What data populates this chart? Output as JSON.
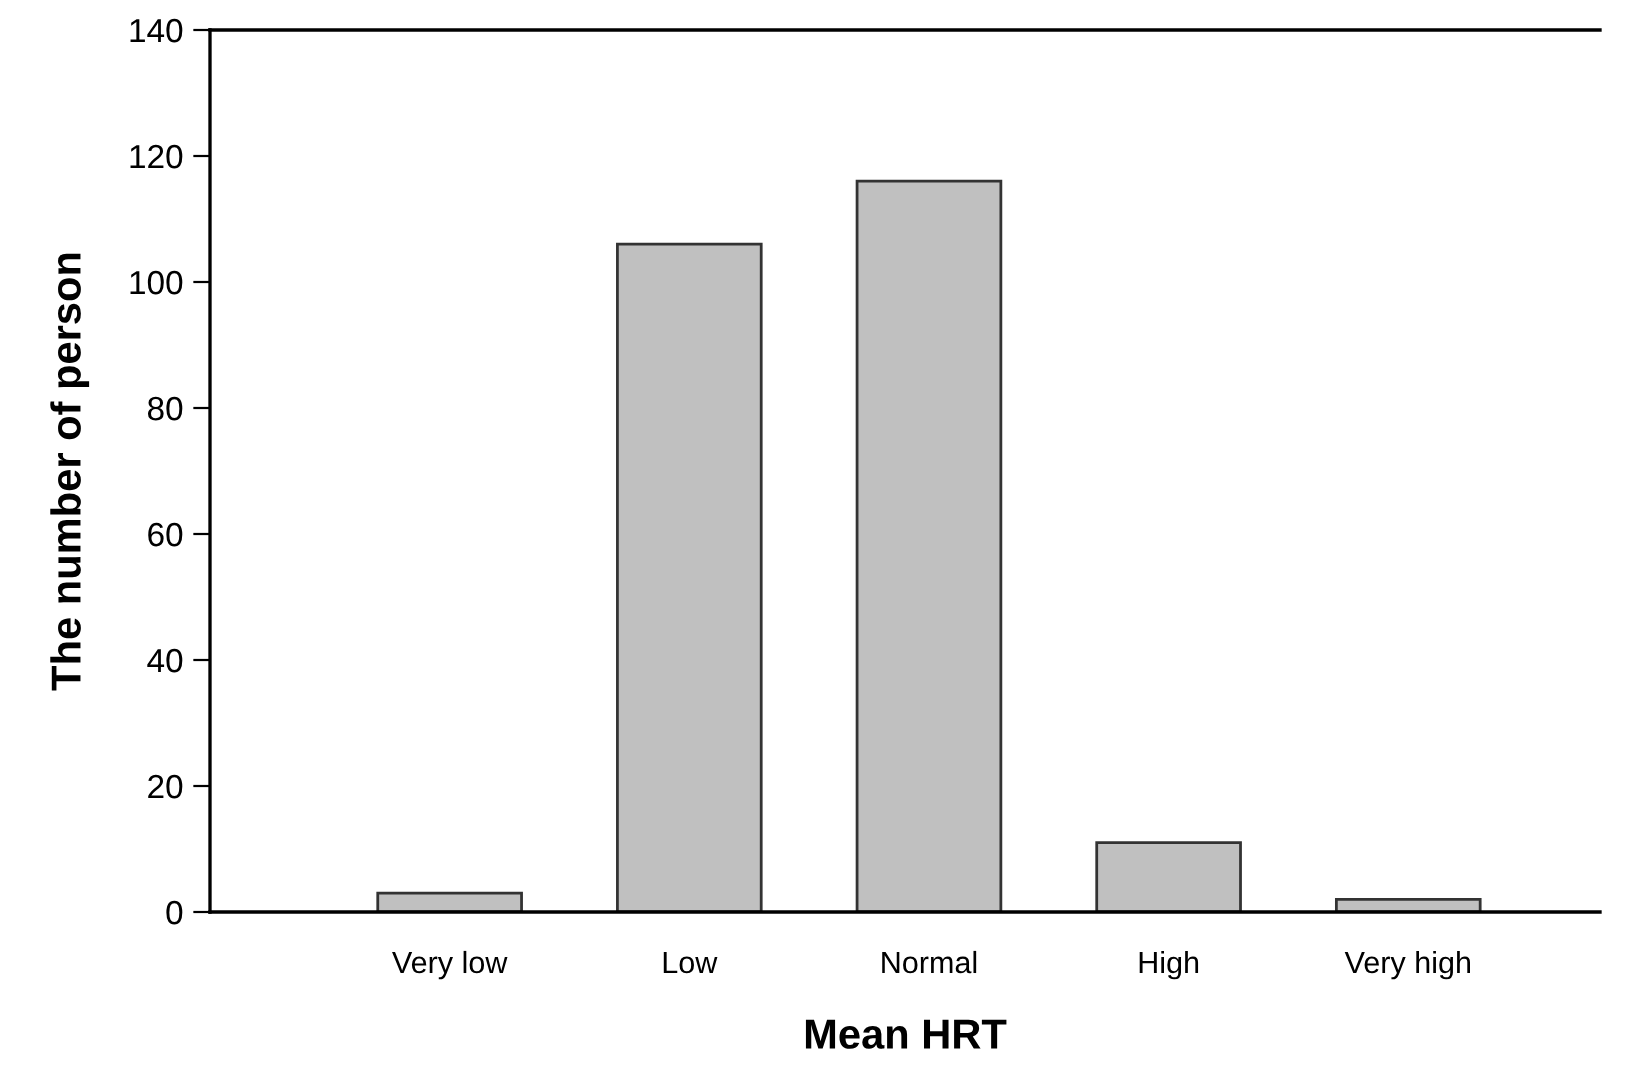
{
  "chart_data": {
    "type": "bar",
    "xlabel": "Mean HRT",
    "ylabel": "The number of person",
    "categories": [
      "Very low",
      "Low",
      "Normal",
      "High",
      "Very high"
    ],
    "values": [
      3,
      106,
      116,
      11,
      2
    ],
    "color": "#c0c0c0",
    "ylim": [
      0,
      140
    ],
    "yticks": [
      0,
      20,
      40,
      60,
      80,
      100,
      120,
      140
    ],
    "grid": false
  }
}
